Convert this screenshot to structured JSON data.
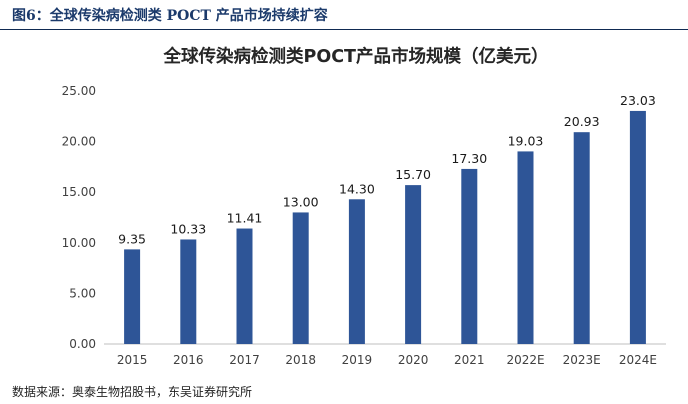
{
  "figure_label": "图6：全球传染病检测类 POCT 产品市场持续扩容",
  "source_note": "数据来源：奥泰生物招股书，东吴证券研究所",
  "colors": {
    "bar": "#2e5597",
    "axis": "#bfbfbf",
    "header_rule": "#0f2a52"
  },
  "chart_data": {
    "type": "bar",
    "title": "全球传染病检测类POCT产品市场规模（亿美元）",
    "categories": [
      "2015",
      "2016",
      "2017",
      "2018",
      "2019",
      "2020",
      "2021",
      "2022E",
      "2023E",
      "2024E"
    ],
    "values": [
      9.35,
      10.33,
      11.41,
      13.0,
      14.3,
      15.7,
      17.3,
      19.03,
      20.93,
      23.03
    ],
    "value_labels": [
      "9.35",
      "10.33",
      "11.41",
      "13.00",
      "14.30",
      "15.70",
      "17.30",
      "19.03",
      "20.93",
      "23.03"
    ],
    "ylim": [
      0,
      25
    ],
    "yticks": [
      "0.00",
      "5.00",
      "10.00",
      "15.00",
      "20.00",
      "25.00"
    ],
    "xlabel": "",
    "ylabel": "",
    "grid": false,
    "legend": "none"
  }
}
